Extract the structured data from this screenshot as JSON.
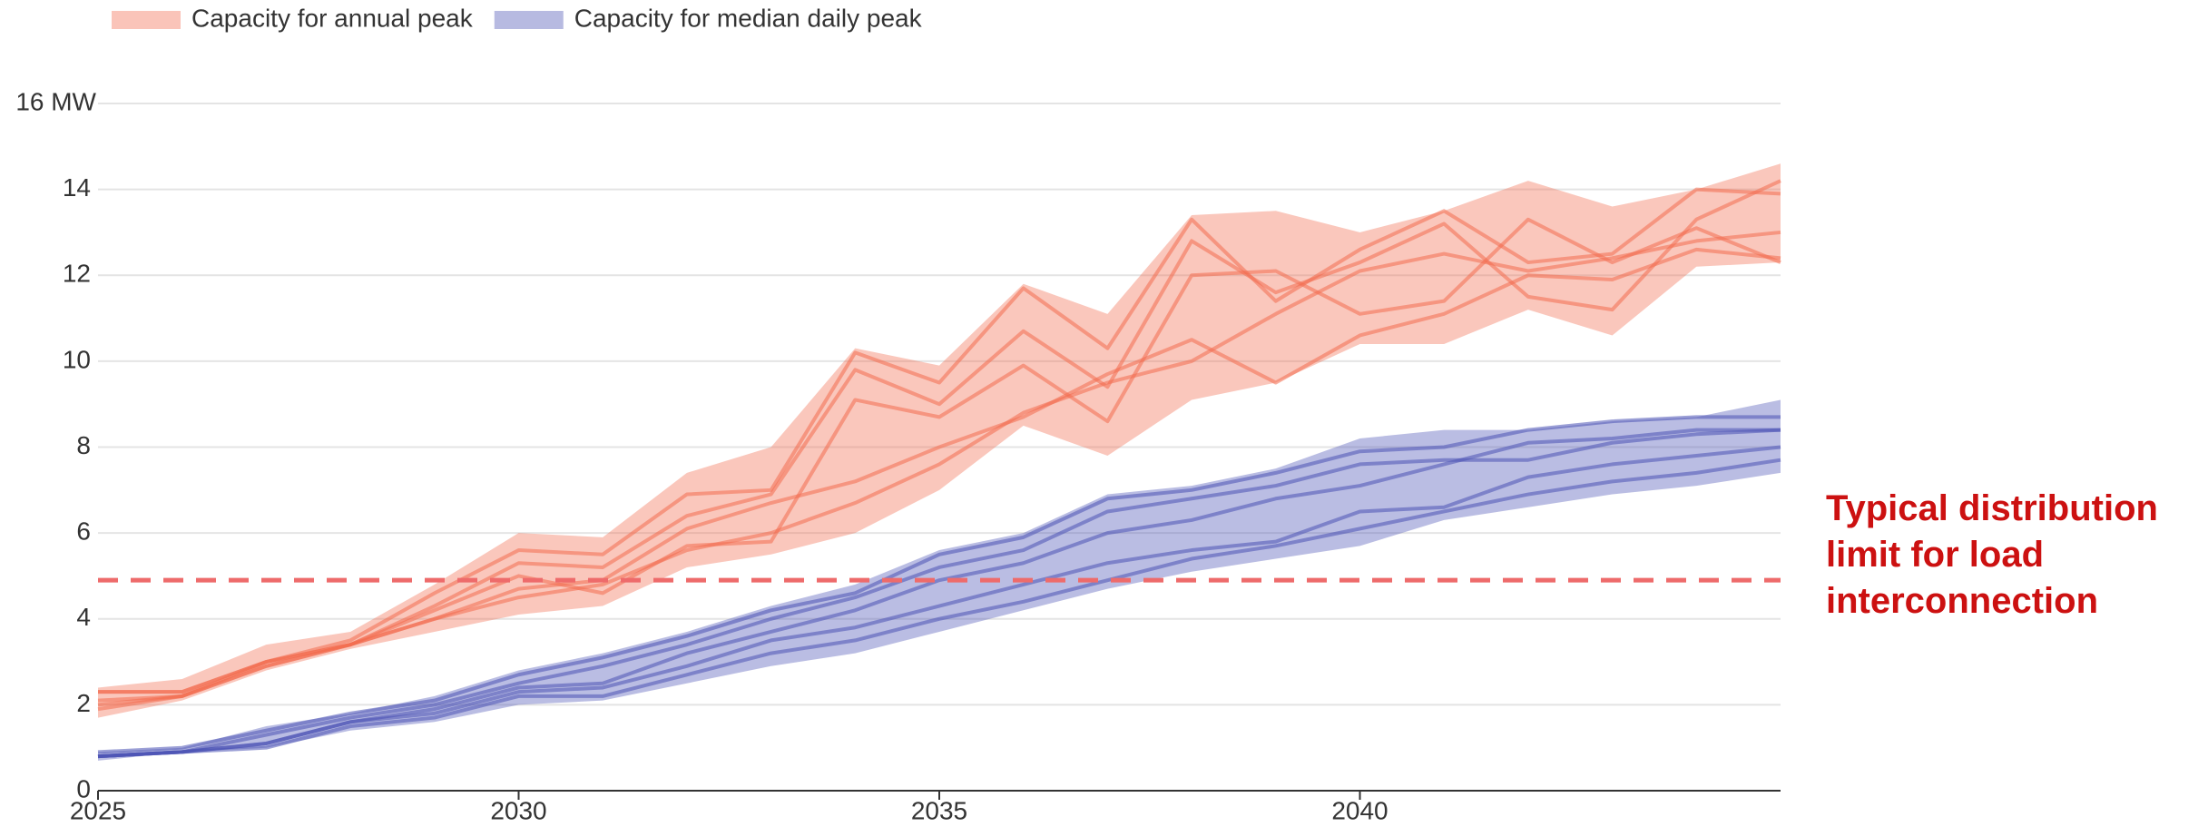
{
  "chart_data": {
    "type": "band-line",
    "x": [
      2025,
      2026,
      2027,
      2028,
      2029,
      2030,
      2031,
      2032,
      2033,
      2034,
      2035,
      2036,
      2037,
      2038,
      2039,
      2040,
      2041,
      2042,
      2043,
      2044,
      2045
    ],
    "xlim": [
      2025,
      2045
    ],
    "xticks": [
      2025,
      2030,
      2035,
      2040
    ],
    "ylim": [
      0,
      16
    ],
    "yticks": [
      0,
      2,
      4,
      6,
      8,
      10,
      12,
      14,
      {
        "value": 16,
        "label": "16 MW"
      }
    ],
    "grid": true,
    "legend": "top-left",
    "series": [
      {
        "name": "Capacity for annual peak",
        "color": "#f26b4f",
        "upper": [
          2.4,
          2.6,
          3.4,
          3.7,
          4.8,
          6.0,
          5.9,
          7.4,
          8.0,
          10.3,
          9.9,
          11.8,
          11.1,
          13.4,
          13.5,
          13.0,
          13.5,
          14.2,
          13.6,
          14.0,
          14.6
        ],
        "lower": [
          1.7,
          2.1,
          2.8,
          3.3,
          3.7,
          4.1,
          4.3,
          5.2,
          5.5,
          6.0,
          7.0,
          8.5,
          7.8,
          9.1,
          9.5,
          10.4,
          10.4,
          11.2,
          10.6,
          12.2,
          12.3
        ],
        "lines": [
          [
            2.3,
            2.3,
            3.0,
            3.5,
            4.6,
            5.6,
            5.5,
            6.9,
            7.0,
            10.2,
            9.5,
            11.7,
            10.3,
            13.3,
            11.4,
            12.6,
            13.5,
            12.3,
            12.5,
            14.0,
            13.9
          ],
          [
            2.0,
            2.2,
            2.9,
            3.4,
            4.3,
            5.3,
            5.2,
            6.4,
            6.9,
            9.8,
            9.0,
            10.7,
            9.4,
            12.8,
            11.6,
            12.3,
            13.2,
            11.5,
            11.2,
            13.3,
            14.2
          ],
          [
            2.3,
            2.3,
            3.0,
            3.4,
            4.2,
            5.0,
            4.6,
            5.7,
            5.8,
            9.1,
            8.7,
            9.9,
            8.6,
            12.0,
            12.1,
            11.1,
            11.4,
            13.3,
            12.3,
            13.1,
            12.3
          ],
          [
            1.9,
            2.2,
            3.0,
            3.4,
            4.0,
            4.7,
            4.9,
            6.1,
            6.7,
            7.2,
            8.0,
            8.7,
            9.7,
            10.5,
            9.5,
            10.6,
            11.1,
            12.0,
            11.9,
            12.6,
            12.4
          ],
          [
            2.1,
            2.2,
            2.9,
            3.4,
            4.0,
            4.5,
            4.8,
            5.6,
            6.0,
            6.7,
            7.6,
            8.8,
            9.5,
            10.0,
            11.1,
            12.1,
            12.5,
            12.1,
            12.4,
            12.8,
            13.0
          ]
        ]
      },
      {
        "name": "Capacity for median daily peak",
        "color": "#4a52b5",
        "upper": [
          0.9,
          1.0,
          1.5,
          1.8,
          2.2,
          2.8,
          3.2,
          3.7,
          4.3,
          4.8,
          5.6,
          6.0,
          6.9,
          7.1,
          7.5,
          8.2,
          8.4,
          8.4,
          8.6,
          8.7,
          9.1
        ],
        "lower": [
          0.7,
          0.9,
          1.0,
          1.4,
          1.6,
          2.0,
          2.1,
          2.5,
          2.9,
          3.2,
          3.7,
          4.2,
          4.7,
          5.1,
          5.4,
          5.7,
          6.3,
          6.6,
          6.9,
          7.1,
          7.4
        ],
        "lines": [
          [
            0.9,
            1.0,
            1.4,
            1.8,
            2.1,
            2.7,
            3.1,
            3.6,
            4.2,
            4.6,
            5.5,
            5.9,
            6.8,
            7.0,
            7.4,
            7.9,
            8.0,
            8.4,
            8.6,
            8.7,
            8.7
          ],
          [
            0.8,
            0.9,
            1.3,
            1.7,
            2.0,
            2.5,
            2.9,
            3.4,
            4.0,
            4.5,
            5.2,
            5.6,
            6.5,
            6.8,
            7.1,
            7.6,
            7.7,
            7.7,
            8.1,
            8.3,
            8.4
          ],
          [
            0.8,
            0.9,
            1.1,
            1.6,
            1.9,
            2.4,
            2.5,
            3.2,
            3.7,
            4.2,
            4.9,
            5.3,
            6.0,
            6.3,
            6.8,
            7.1,
            7.6,
            8.1,
            8.2,
            8.4,
            8.4
          ],
          [
            0.8,
            0.9,
            1.1,
            1.6,
            1.8,
            2.3,
            2.4,
            2.9,
            3.5,
            3.8,
            4.3,
            4.8,
            5.3,
            5.6,
            5.8,
            6.5,
            6.6,
            7.3,
            7.6,
            7.8,
            8.0
          ],
          [
            0.8,
            0.9,
            1.0,
            1.5,
            1.7,
            2.2,
            2.2,
            2.7,
            3.2,
            3.5,
            4.0,
            4.4,
            4.9,
            5.4,
            5.7,
            6.1,
            6.5,
            6.9,
            7.2,
            7.4,
            7.7
          ]
        ]
      }
    ],
    "annotation": {
      "text": "Typical distribution limit for load interconnection",
      "value": 4.9,
      "color": "#cc1111",
      "line_color": "#ee6b6b"
    }
  }
}
